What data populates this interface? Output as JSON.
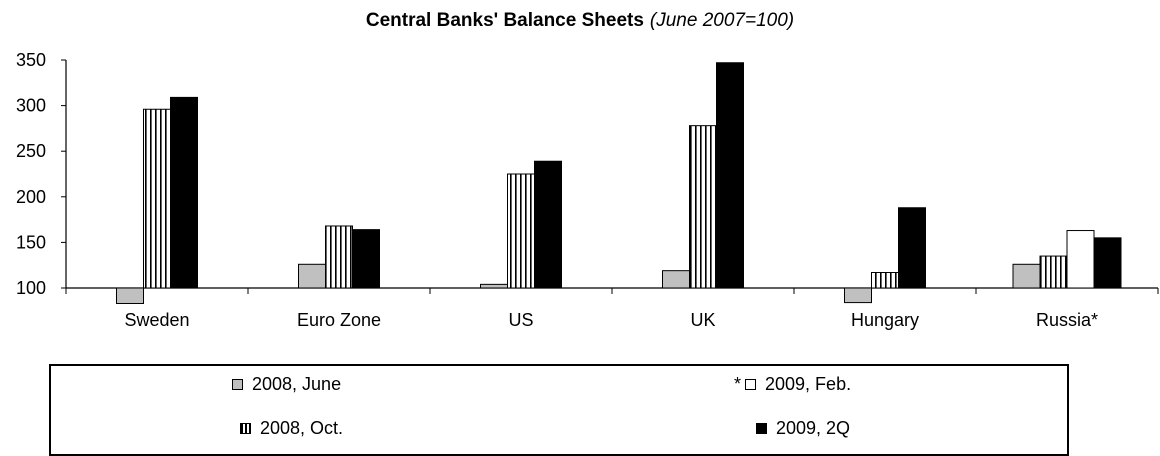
{
  "chart_data": {
    "type": "bar",
    "title": "Central Banks' Balance Sheets",
    "subtitle": "(June 2007=100)",
    "categories": [
      "Sweden",
      "Euro Zone",
      "US",
      "UK",
      "Hungary",
      "Russia*"
    ],
    "ylim": [
      100,
      350
    ],
    "yticks": [
      100,
      150,
      200,
      250,
      300,
      350
    ],
    "grid": false,
    "legend_position": "bottom",
    "series": [
      {
        "name": "2008, June",
        "values": [
          83,
          126,
          104,
          119,
          84,
          126
        ],
        "fill": "#c0c0c0",
        "pattern": "solid"
      },
      {
        "name": "2008, Oct.",
        "values": [
          296,
          168,
          225,
          278,
          117,
          135
        ],
        "fill": "#ffffff",
        "pattern": "vertical-stripes"
      },
      {
        "name": "2009, Feb.",
        "values": [
          null,
          null,
          null,
          null,
          null,
          163
        ],
        "fill": "#ffffff",
        "pattern": "plain",
        "marker": "*"
      },
      {
        "name": "2009, 2Q",
        "values": [
          309,
          164,
          239,
          347,
          188,
          155
        ],
        "fill": "#000000",
        "pattern": "solid"
      }
    ]
  }
}
